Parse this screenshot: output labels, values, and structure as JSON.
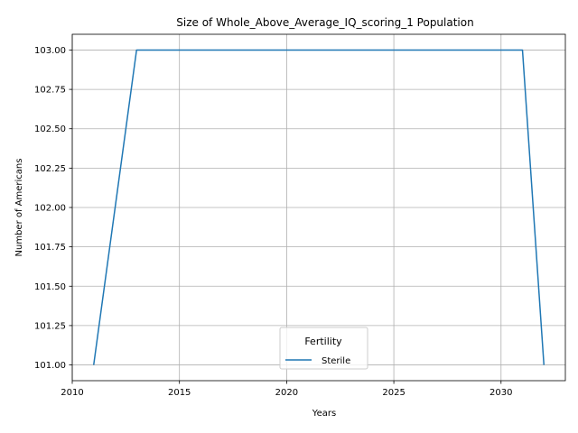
{
  "chart_data": {
    "type": "line",
    "title": "Size of Whole_Above_Average_IQ_scoring_1 Population",
    "xlabel": "Years",
    "ylabel": "Number of Americans",
    "xlim": [
      2010,
      2033
    ],
    "ylim": [
      100.9,
      103.1
    ],
    "xticks": [
      2010,
      2015,
      2020,
      2025,
      2030
    ],
    "xtick_labels": [
      "2010",
      "2015",
      "2020",
      "2025",
      "2030"
    ],
    "yticks": [
      101.0,
      101.25,
      101.5,
      101.75,
      102.0,
      102.25,
      102.5,
      102.75,
      103.0
    ],
    "ytick_labels": [
      "101.00",
      "101.25",
      "101.50",
      "101.75",
      "102.00",
      "102.25",
      "102.50",
      "102.75",
      "103.00"
    ],
    "grid": true,
    "legend": {
      "title": "Fertility",
      "placement": "lower-center"
    },
    "series": [
      {
        "name": "Sterile",
        "color": "#1f77b4",
        "x": [
          2011,
          2013,
          2031,
          2032
        ],
        "y": [
          101,
          103,
          103,
          101
        ]
      }
    ]
  }
}
